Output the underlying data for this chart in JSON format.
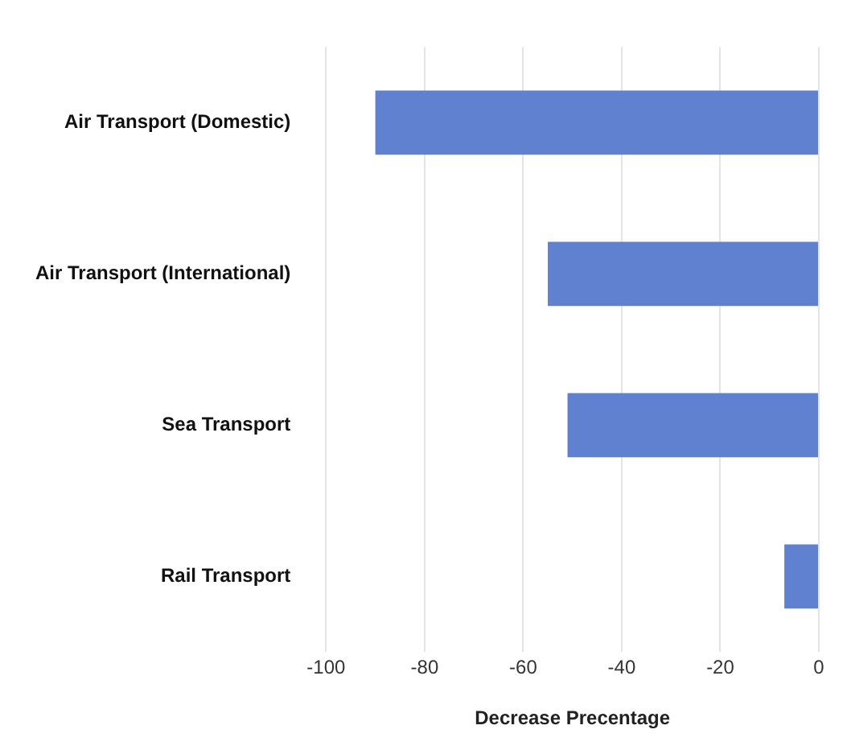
{
  "chart_data": {
    "type": "bar",
    "orientation": "horizontal",
    "xlabel": "Decrease Precentage",
    "categories": [
      "Air Transport (Domestic)",
      "Air Transport (International)",
      "Sea Transport",
      "Rail Transport"
    ],
    "values": [
      -90,
      -55,
      -51,
      -7
    ],
    "color": "#6080d0",
    "xlim": [
      -100,
      0
    ],
    "xticks": [
      -100,
      -80,
      -60,
      -40,
      -20,
      0
    ],
    "grid": "x",
    "legend": false
  }
}
